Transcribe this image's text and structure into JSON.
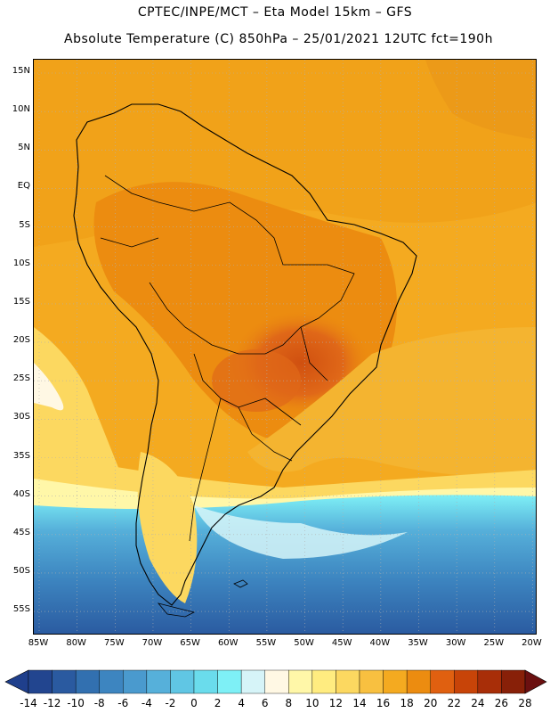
{
  "title_line1": "CPTEC/INPE/MCT –  Eta Model 15km – GFS",
  "title_line2": "Absolute Temperature (C) 850hPa – 25/01/2021 12UTC fct=190h",
  "lat_labels": [
    "15N",
    "10N",
    "5N",
    "EQ",
    "5S",
    "10S",
    "15S",
    "20S",
    "25S",
    "30S",
    "35S",
    "40S",
    "45S",
    "50S",
    "55S"
  ],
  "lat_values": [
    15,
    10,
    5,
    0,
    -5,
    -10,
    -15,
    -20,
    -25,
    -30,
    -35,
    -40,
    -45,
    -50,
    -55
  ],
  "lon_labels": [
    "85W",
    "80W",
    "75W",
    "70W",
    "65W",
    "60W",
    "55W",
    "50W",
    "45W",
    "40W",
    "35W",
    "30W",
    "25W",
    "20W"
  ],
  "lon_values": [
    -85,
    -80,
    -75,
    -70,
    -65,
    -60,
    -55,
    -50,
    -45,
    -40,
    -35,
    -30,
    -25,
    -20
  ],
  "colorbar": {
    "labels": [
      "-14",
      "-12",
      "-10",
      "-8",
      "-6",
      "-4",
      "-2",
      "0",
      "2",
      "4",
      "6",
      "8",
      "10",
      "12",
      "14",
      "16",
      "18",
      "20",
      "22",
      "24",
      "26",
      "28"
    ],
    "under_color": "#1f3f8c",
    "over_color": "#6b1010",
    "colors": [
      "#22458f",
      "#2a5aa0",
      "#3270b0",
      "#3d85c0",
      "#4a9ace",
      "#56b0da",
      "#60c6e4",
      "#6adcec",
      "#7ef0f6",
      "#d6f4f8",
      "#fff8e4",
      "#fff7a8",
      "#ffec80",
      "#fcd860",
      "#f8c040",
      "#f4aa20",
      "#ec8c10",
      "#e06010",
      "#c84408",
      "#a82e08",
      "#882008"
    ]
  },
  "colors": {
    "frame": "#000000",
    "grid": "#b0b0b0",
    "coast": "#000000"
  }
}
